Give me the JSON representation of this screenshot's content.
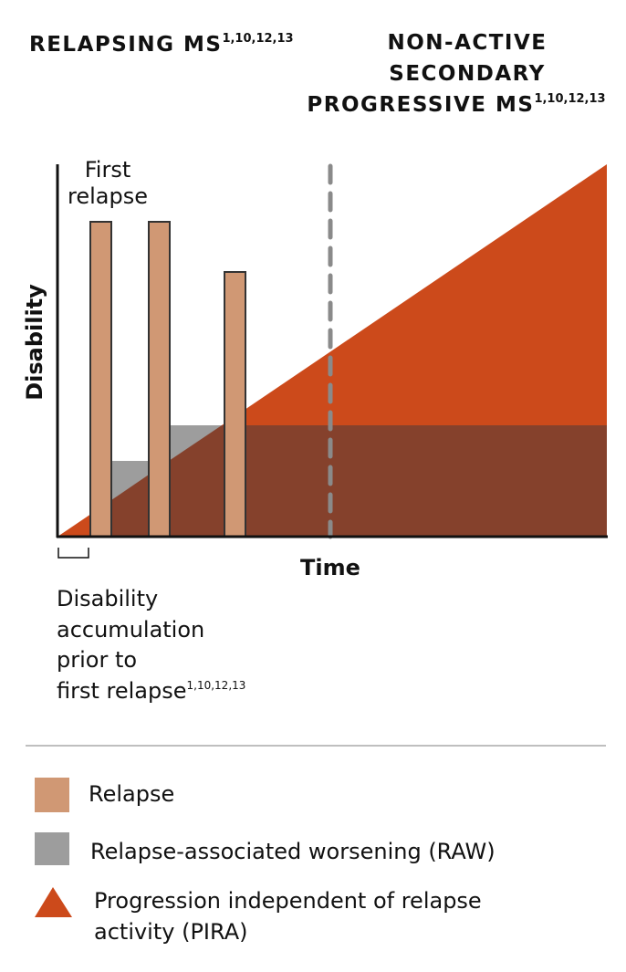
{
  "headings": {
    "relapsing": {
      "text": "RELAPSING MS",
      "refs": "1,10,12,13"
    },
    "spms": {
      "lines": [
        "NON-ACTIVE",
        "SECONDARY",
        "PROGRESSIVE MS"
      ],
      "refs": "1,10,12,13"
    }
  },
  "diagram": {
    "y_axis_label": "Disability",
    "x_axis_label": "Time",
    "first_relapse_lines": [
      "First",
      "relapse"
    ],
    "pre_relapse_note": {
      "lines": [
        "Disability",
        "accumulation",
        "prior to",
        "first relapse"
      ],
      "refs": "1,10,12,13"
    }
  },
  "legend": [
    {
      "label": "Relapse"
    },
    {
      "label": "Relapse-associated worsening (RAW)"
    },
    {
      "label_lines": [
        "Progression independent of relapse",
        "activity (PIRA)"
      ]
    }
  ]
}
